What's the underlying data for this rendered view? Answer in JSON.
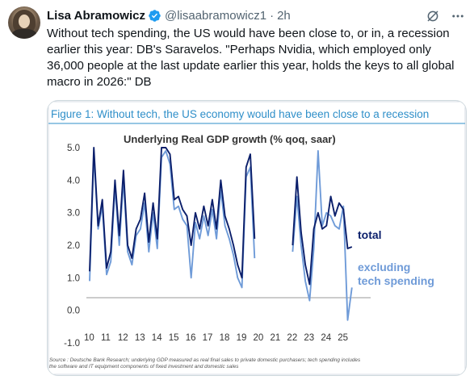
{
  "author": {
    "name": "Lisa Abramowicz",
    "handle": "@lisaabramowicz1",
    "separator": "·",
    "time": "2h",
    "verified_icon": "verified-badge-icon",
    "avatar": "avatar-photo"
  },
  "actions": {
    "grok_icon": "grok-slash-icon",
    "more_icon": "more-options-icon"
  },
  "tweet": {
    "text": "Without tech spending, the US would have been close to, or in, a recession earlier this year: DB's Saravelos. \"Perhaps Nvidia, which employed only 36,000 people at the last update earlier this year, holds the keys to all global macro in 2026:\" DB"
  },
  "colors": {
    "figure_title": "#2f8fc9",
    "total_series": "#0b1f6b",
    "excluding_series": "#6f9bd8"
  },
  "chart_data": {
    "type": "line",
    "figure_title": "Figure 1: Without tech, the US economy would have been close to a recession",
    "title": "Underlying Real GDP growth (% qoq, saar)",
    "xlabel": "",
    "ylabel": "",
    "ylim": [
      -1.0,
      5.0
    ],
    "yticks": [
      "5.0",
      "4.0",
      "3.0",
      "2.0",
      "1.0",
      "0.0",
      "-1.0"
    ],
    "ytick_values": [
      5,
      4,
      3,
      2,
      1,
      0,
      -1
    ],
    "xlim": [
      2010,
      2025.75
    ],
    "xticks": [
      "10",
      "11",
      "12",
      "13",
      "14",
      "15",
      "16",
      "17",
      "18",
      "19",
      "20",
      "21",
      "22",
      "23",
      "24",
      "25"
    ],
    "xtick_values": [
      2010,
      2011,
      2012,
      2013,
      2014,
      2015,
      2016,
      2017,
      2018,
      2019,
      2020,
      2021,
      2022,
      2023,
      2024,
      2025
    ],
    "grid": false,
    "legend": "right, at line ends",
    "source_note": "Source : Deutsche Bank Research; underlying GDP measured as real final sales to private domestic purchasers; tech spending includes the software and IT equipment components of fixed investment and domestic sales",
    "series": [
      {
        "name": "total",
        "points": [
          [
            2010.0,
            1.2
          ],
          [
            2010.25,
            5.0
          ],
          [
            2010.5,
            2.6
          ],
          [
            2010.75,
            3.4
          ],
          [
            2011.0,
            1.3
          ],
          [
            2011.25,
            1.8
          ],
          [
            2011.5,
            4.0
          ],
          [
            2011.75,
            2.3
          ],
          [
            2012.0,
            4.3
          ],
          [
            2012.25,
            2.0
          ],
          [
            2012.5,
            1.6
          ],
          [
            2012.75,
            2.5
          ],
          [
            2013.0,
            2.8
          ],
          [
            2013.25,
            3.6
          ],
          [
            2013.5,
            2.1
          ],
          [
            2013.75,
            3.3
          ],
          [
            2014.0,
            2.2
          ],
          [
            2014.25,
            5.0
          ],
          [
            2014.5,
            5.0
          ],
          [
            2014.75,
            4.8
          ],
          [
            2015.0,
            3.4
          ],
          [
            2015.25,
            3.5
          ],
          [
            2015.5,
            3.1
          ],
          [
            2015.75,
            2.9
          ],
          [
            2016.0,
            2.0
          ],
          [
            2016.25,
            3.0
          ],
          [
            2016.5,
            2.5
          ],
          [
            2016.75,
            3.2
          ],
          [
            2017.0,
            2.6
          ],
          [
            2017.25,
            3.4
          ],
          [
            2017.5,
            2.5
          ],
          [
            2017.75,
            4.0
          ],
          [
            2018.0,
            2.9
          ],
          [
            2018.25,
            2.5
          ],
          [
            2018.5,
            2.0
          ],
          [
            2018.75,
            1.4
          ],
          [
            2019.0,
            1.0
          ],
          [
            2019.25,
            4.4
          ],
          [
            2019.5,
            4.8
          ],
          [
            2019.75,
            2.2
          ],
          [
            2020.0,
            null
          ],
          [
            2020.25,
            null
          ],
          [
            2020.5,
            null
          ],
          [
            2020.75,
            null
          ],
          [
            2021.0,
            null
          ],
          [
            2021.25,
            null
          ],
          [
            2021.5,
            null
          ],
          [
            2021.75,
            null
          ],
          [
            2022.0,
            2.0
          ],
          [
            2022.25,
            4.1
          ],
          [
            2022.5,
            2.4
          ],
          [
            2022.75,
            1.4
          ],
          [
            2023.0,
            0.8
          ],
          [
            2023.25,
            2.5
          ],
          [
            2023.5,
            3.0
          ],
          [
            2023.75,
            2.5
          ],
          [
            2024.0,
            2.6
          ],
          [
            2024.25,
            3.5
          ],
          [
            2024.5,
            2.9
          ],
          [
            2024.75,
            3.3
          ],
          [
            2025.0,
            3.1
          ],
          [
            2025.25,
            1.9
          ],
          [
            2025.5,
            1.95
          ]
        ]
      },
      {
        "name": "excluding tech spending",
        "points": [
          [
            2010.0,
            0.9
          ],
          [
            2010.25,
            4.8
          ],
          [
            2010.5,
            2.5
          ],
          [
            2010.75,
            3.2
          ],
          [
            2011.0,
            1.1
          ],
          [
            2011.25,
            1.5
          ],
          [
            2011.5,
            3.8
          ],
          [
            2011.75,
            2.0
          ],
          [
            2012.0,
            4.0
          ],
          [
            2012.25,
            1.8
          ],
          [
            2012.5,
            1.4
          ],
          [
            2012.75,
            2.3
          ],
          [
            2013.0,
            2.5
          ],
          [
            2013.25,
            3.3
          ],
          [
            2013.5,
            1.8
          ],
          [
            2013.75,
            3.0
          ],
          [
            2014.0,
            1.9
          ],
          [
            2014.25,
            4.7
          ],
          [
            2014.5,
            4.9
          ],
          [
            2014.75,
            4.5
          ],
          [
            2015.0,
            3.1
          ],
          [
            2015.25,
            3.2
          ],
          [
            2015.5,
            2.8
          ],
          [
            2015.75,
            2.6
          ],
          [
            2016.0,
            1.0
          ],
          [
            2016.25,
            2.7
          ],
          [
            2016.5,
            2.2
          ],
          [
            2016.75,
            2.9
          ],
          [
            2017.0,
            2.3
          ],
          [
            2017.25,
            3.1
          ],
          [
            2017.5,
            2.2
          ],
          [
            2017.75,
            3.7
          ],
          [
            2018.0,
            2.6
          ],
          [
            2018.25,
            2.2
          ],
          [
            2018.5,
            1.7
          ],
          [
            2018.75,
            1.0
          ],
          [
            2019.0,
            0.7
          ],
          [
            2019.25,
            4.1
          ],
          [
            2019.5,
            4.4
          ],
          [
            2019.75,
            1.6
          ],
          [
            2020.0,
            null
          ],
          [
            2020.25,
            null
          ],
          [
            2020.5,
            null
          ],
          [
            2020.75,
            null
          ],
          [
            2021.0,
            null
          ],
          [
            2021.25,
            null
          ],
          [
            2021.5,
            null
          ],
          [
            2021.75,
            null
          ],
          [
            2022.0,
            1.8
          ],
          [
            2022.25,
            3.5
          ],
          [
            2022.5,
            2.0
          ],
          [
            2022.75,
            0.9
          ],
          [
            2023.0,
            0.3
          ],
          [
            2023.25,
            1.9
          ],
          [
            2023.5,
            4.9
          ],
          [
            2023.75,
            2.6
          ],
          [
            2024.0,
            3.0
          ],
          [
            2024.25,
            2.9
          ],
          [
            2024.5,
            2.6
          ],
          [
            2024.75,
            2.5
          ],
          [
            2025.0,
            3.2
          ],
          [
            2025.25,
            -0.3
          ],
          [
            2025.5,
            0.7
          ]
        ]
      }
    ]
  }
}
